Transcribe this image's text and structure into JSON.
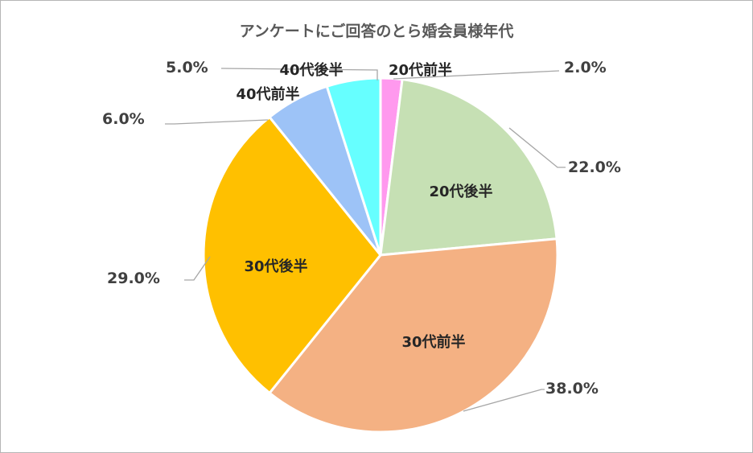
{
  "chart_data": {
    "type": "pie",
    "title": "アンケートにご回答のとら婚会員様年代",
    "categories": [
      "20代前半",
      "20代後半",
      "30代前半",
      "30代後半",
      "40代前半",
      "40代後半"
    ],
    "values": [
      2.0,
      22.0,
      38.0,
      29.0,
      6.0,
      5.0
    ],
    "value_labels": [
      "2.0%",
      "22.0%",
      "38.0%",
      "29.0%",
      "6.0%",
      "5.0%"
    ],
    "colors": [
      "#ff99ee",
      "#c6e0b4",
      "#f4b183",
      "#ffc000",
      "#9dc3f7",
      "#66ffff"
    ],
    "start": "12 o'clock",
    "direction": "clockwise",
    "legend": "none"
  }
}
